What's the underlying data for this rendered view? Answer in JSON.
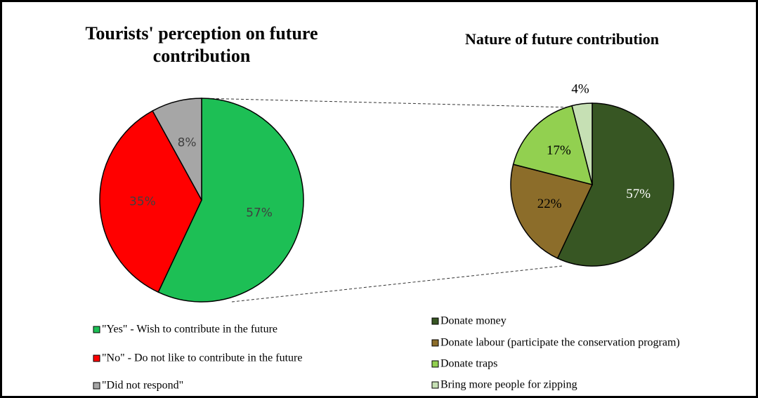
{
  "chart_data": [
    {
      "type": "pie",
      "title": "Tourists' perception on future contribution",
      "categories": [
        "\"Yes\" - Wish to contribute in the future",
        "\"No\" - Do not like to contribute in the future",
        "\"Did not respond\""
      ],
      "values": [
        57,
        35,
        8
      ],
      "value_labels": [
        "57%",
        "35%",
        "8%"
      ],
      "colors": [
        "#1dbf55",
        "#ff0000",
        "#a6a6a6"
      ]
    },
    {
      "type": "pie",
      "title": "Nature of future contribution",
      "categories": [
        "Donate money",
        "Donate labour (participate the conservation program)",
        "Donate traps",
        "Bring more people for zipping"
      ],
      "values": [
        57,
        22,
        17,
        4
      ],
      "value_labels": [
        "57%",
        "22%",
        "17%",
        "4%"
      ],
      "colors": [
        "#375623",
        "#8c6d2a",
        "#92d050",
        "#c6e0b4"
      ]
    }
  ]
}
